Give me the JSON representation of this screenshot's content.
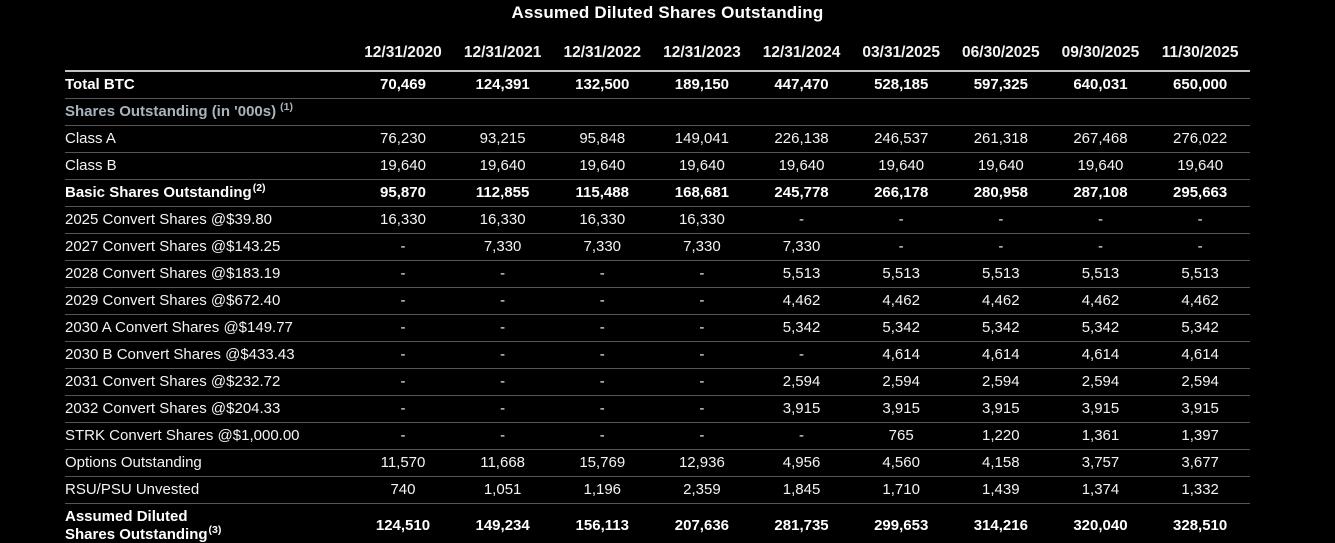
{
  "title": "Assumed Diluted Shares Outstanding",
  "colors": {
    "background": "#000000",
    "text": "#ffffff",
    "section_text": "#a9b3bb",
    "row_border": "#565656",
    "header_border": "#c2c2c2",
    "bottom_border": "#9a9a9a"
  },
  "chart_data": {
    "type": "table",
    "title": "Assumed Diluted Shares Outstanding",
    "categories": [
      "12/31/2020",
      "12/31/2021",
      "12/31/2022",
      "12/31/2023",
      "12/31/2024",
      "03/31/2025",
      "06/30/2025",
      "09/30/2025",
      "11/30/2025"
    ],
    "series": [
      {
        "name": "Total BTC",
        "values": [
          70469,
          124391,
          132500,
          189150,
          447470,
          528185,
          597325,
          640031,
          650000
        ]
      },
      {
        "name": "Class A",
        "values": [
          76230,
          93215,
          95848,
          149041,
          226138,
          246537,
          261318,
          267468,
          276022
        ]
      },
      {
        "name": "Class B",
        "values": [
          19640,
          19640,
          19640,
          19640,
          19640,
          19640,
          19640,
          19640,
          19640
        ]
      },
      {
        "name": "Basic Shares Outstanding",
        "values": [
          95870,
          112855,
          115488,
          168681,
          245778,
          266178,
          280958,
          287108,
          295663
        ]
      },
      {
        "name": "2025 Convert Shares @$39.80",
        "values": [
          16330,
          16330,
          16330,
          16330,
          null,
          null,
          null,
          null,
          null
        ]
      },
      {
        "name": "2027 Convert Shares @$143.25",
        "values": [
          null,
          7330,
          7330,
          7330,
          7330,
          null,
          null,
          null,
          null
        ]
      },
      {
        "name": "2028 Convert Shares @$183.19",
        "values": [
          null,
          null,
          null,
          null,
          5513,
          5513,
          5513,
          5513,
          5513
        ]
      },
      {
        "name": "2029 Convert Shares @$672.40",
        "values": [
          null,
          null,
          null,
          null,
          4462,
          4462,
          4462,
          4462,
          4462
        ]
      },
      {
        "name": "2030 A Convert Shares @$149.77",
        "values": [
          null,
          null,
          null,
          null,
          5342,
          5342,
          5342,
          5342,
          5342
        ]
      },
      {
        "name": "2030 B Convert Shares @$433.43",
        "values": [
          null,
          null,
          null,
          null,
          null,
          4614,
          4614,
          4614,
          4614
        ]
      },
      {
        "name": "2031 Convert Shares @$232.72",
        "values": [
          null,
          null,
          null,
          null,
          2594,
          2594,
          2594,
          2594,
          2594
        ]
      },
      {
        "name": "2032 Convert Shares @$204.33",
        "values": [
          null,
          null,
          null,
          null,
          3915,
          3915,
          3915,
          3915,
          3915
        ]
      },
      {
        "name": "STRK Convert Shares @$1,000.00",
        "values": [
          null,
          null,
          null,
          null,
          null,
          765,
          1220,
          1361,
          1397
        ]
      },
      {
        "name": "Options Outstanding",
        "values": [
          11570,
          11668,
          15769,
          12936,
          4956,
          4560,
          4158,
          3757,
          3677
        ]
      },
      {
        "name": "RSU/PSU Unvested",
        "values": [
          740,
          1051,
          1196,
          2359,
          1845,
          1710,
          1439,
          1374,
          1332
        ]
      },
      {
        "name": "Assumed Diluted Shares Outstanding",
        "values": [
          124510,
          149234,
          156113,
          207636,
          281735,
          299653,
          314216,
          320040,
          328510
        ]
      }
    ]
  },
  "table": {
    "columns": [
      "12/31/2020",
      "12/31/2021",
      "12/31/2022",
      "12/31/2023",
      "12/31/2024",
      "03/31/2025",
      "06/30/2025",
      "09/30/2025",
      "11/30/2025"
    ],
    "rows": [
      {
        "label": "Total BTC",
        "sup": "",
        "style": "bold",
        "values": [
          "70,469",
          "124,391",
          "132,500",
          "189,150",
          "447,470",
          "528,185",
          "597,325",
          "640,031",
          "650,000"
        ]
      },
      {
        "label": "Shares Outstanding (in '000s)",
        "sup": "(1)",
        "style": "section",
        "values": [
          "",
          "",
          "",
          "",
          "",
          "",
          "",
          "",
          ""
        ]
      },
      {
        "label": "Class A",
        "sup": "",
        "style": "normal",
        "values": [
          "76,230",
          "93,215",
          "95,848",
          "149,041",
          "226,138",
          "246,537",
          "261,318",
          "267,468",
          "276,022"
        ]
      },
      {
        "label": "Class B",
        "sup": "",
        "style": "normal",
        "values": [
          "19,640",
          "19,640",
          "19,640",
          "19,640",
          "19,640",
          "19,640",
          "19,640",
          "19,640",
          "19,640"
        ]
      },
      {
        "label": "Basic Shares Outstanding",
        "sup": "(2)",
        "style": "bold",
        "values": [
          "95,870",
          "112,855",
          "115,488",
          "168,681",
          "245,778",
          "266,178",
          "280,958",
          "287,108",
          "295,663"
        ]
      },
      {
        "label": "2025 Convert Shares @$39.80",
        "sup": "",
        "style": "normal",
        "values": [
          "16,330",
          "16,330",
          "16,330",
          "16,330",
          "-",
          "-",
          "-",
          "-",
          "-"
        ]
      },
      {
        "label": "2027 Convert Shares @$143.25",
        "sup": "",
        "style": "normal",
        "values": [
          "-",
          "7,330",
          "7,330",
          "7,330",
          "7,330",
          "-",
          "-",
          "-",
          "-"
        ]
      },
      {
        "label": "2028 Convert Shares @$183.19",
        "sup": "",
        "style": "normal",
        "values": [
          "-",
          "-",
          "-",
          "-",
          "5,513",
          "5,513",
          "5,513",
          "5,513",
          "5,513"
        ]
      },
      {
        "label": "2029 Convert Shares @$672.40",
        "sup": "",
        "style": "normal",
        "values": [
          "-",
          "-",
          "-",
          "-",
          "4,462",
          "4,462",
          "4,462",
          "4,462",
          "4,462"
        ]
      },
      {
        "label": "2030 A Convert Shares @$149.77",
        "sup": "",
        "style": "normal",
        "values": [
          "-",
          "-",
          "-",
          "-",
          "5,342",
          "5,342",
          "5,342",
          "5,342",
          "5,342"
        ]
      },
      {
        "label": "2030 B Convert Shares @$433.43",
        "sup": "",
        "style": "normal",
        "values": [
          "-",
          "-",
          "-",
          "-",
          "-",
          "4,614",
          "4,614",
          "4,614",
          "4,614"
        ]
      },
      {
        "label": "2031 Convert Shares @$232.72",
        "sup": "",
        "style": "normal",
        "values": [
          "-",
          "-",
          "-",
          "-",
          "2,594",
          "2,594",
          "2,594",
          "2,594",
          "2,594"
        ]
      },
      {
        "label": "2032 Convert Shares @$204.33",
        "sup": "",
        "style": "normal",
        "values": [
          "-",
          "-",
          "-",
          "-",
          "3,915",
          "3,915",
          "3,915",
          "3,915",
          "3,915"
        ]
      },
      {
        "label": "STRK Convert Shares @$1,000.00",
        "sup": "",
        "style": "normal",
        "values": [
          "-",
          "-",
          "-",
          "-",
          "-",
          "765",
          "1,220",
          "1,361",
          "1,397"
        ]
      },
      {
        "label": "Options Outstanding",
        "sup": "",
        "style": "normal",
        "values": [
          "11,570",
          "11,668",
          "15,769",
          "12,936",
          "4,956",
          "4,560",
          "4,158",
          "3,757",
          "3,677"
        ]
      },
      {
        "label": "RSU/PSU Unvested",
        "sup": "",
        "style": "normal",
        "values": [
          "740",
          "1,051",
          "1,196",
          "2,359",
          "1,845",
          "1,710",
          "1,439",
          "1,374",
          "1,332"
        ]
      },
      {
        "label": "Assumed Diluted\nShares Outstanding",
        "sup": "(3)",
        "style": "bold",
        "values": [
          "124,510",
          "149,234",
          "156,113",
          "207,636",
          "281,735",
          "299,653",
          "314,216",
          "320,040",
          "328,510"
        ]
      }
    ]
  }
}
